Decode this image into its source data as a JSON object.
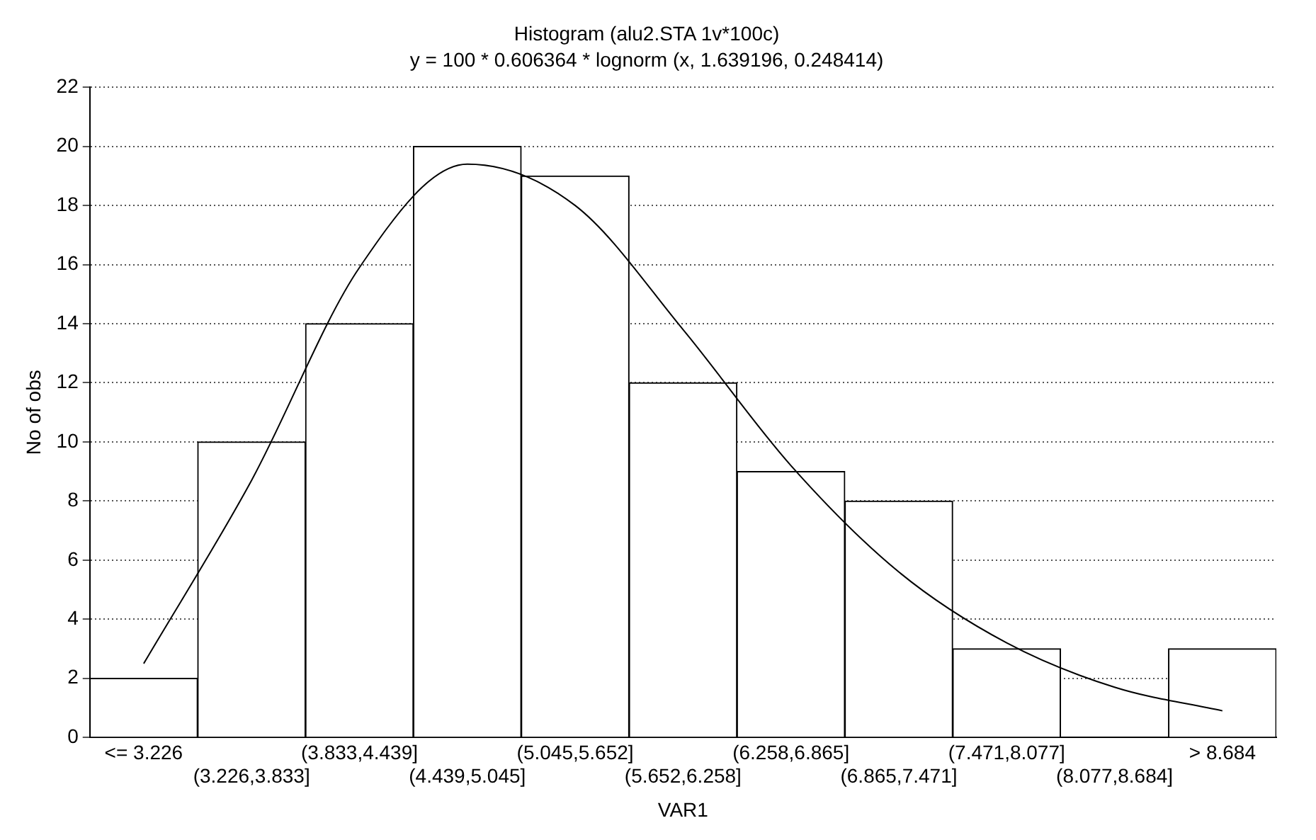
{
  "chart_data": {
    "type": "bar",
    "title": "Histogram (alu2.STA 1v*100c)",
    "subtitle": "y = 100 * 0.606364 * lognorm (x, 1.639196, 0.248414)",
    "xlabel": "VAR1",
    "ylabel": "No of obs",
    "categories": [
      "<= 3.226",
      "(3.226,3.833]",
      "(3.833,4.439]",
      "(4.439,5.045]",
      "(5.045,5.652]",
      "(5.652,6.258]",
      "(6.258,6.865]",
      "(6.865,7.471]",
      "(7.471,8.077]",
      "(8.077,8.684]",
      "> 8.684"
    ],
    "series": [
      {
        "color": "#ffffff",
        "values": [
          2,
          10,
          14,
          20,
          19,
          12,
          9,
          8,
          3,
          0,
          3
        ]
      },
      {
        "type": "line",
        "color": "#000000",
        "values": [
          2.5,
          8.7,
          15.9,
          19.4,
          18,
          13.8,
          9.2,
          5.6,
          3.2,
          1.7,
          0.9
        ]
      }
    ],
    "ylim": [
      0,
      22
    ],
    "yticks": [
      0,
      2,
      4,
      6,
      8,
      10,
      12,
      14,
      16,
      18,
      20,
      22
    ],
    "grid": "y",
    "legend": false,
    "marker": "none",
    "line_style": "solid"
  }
}
